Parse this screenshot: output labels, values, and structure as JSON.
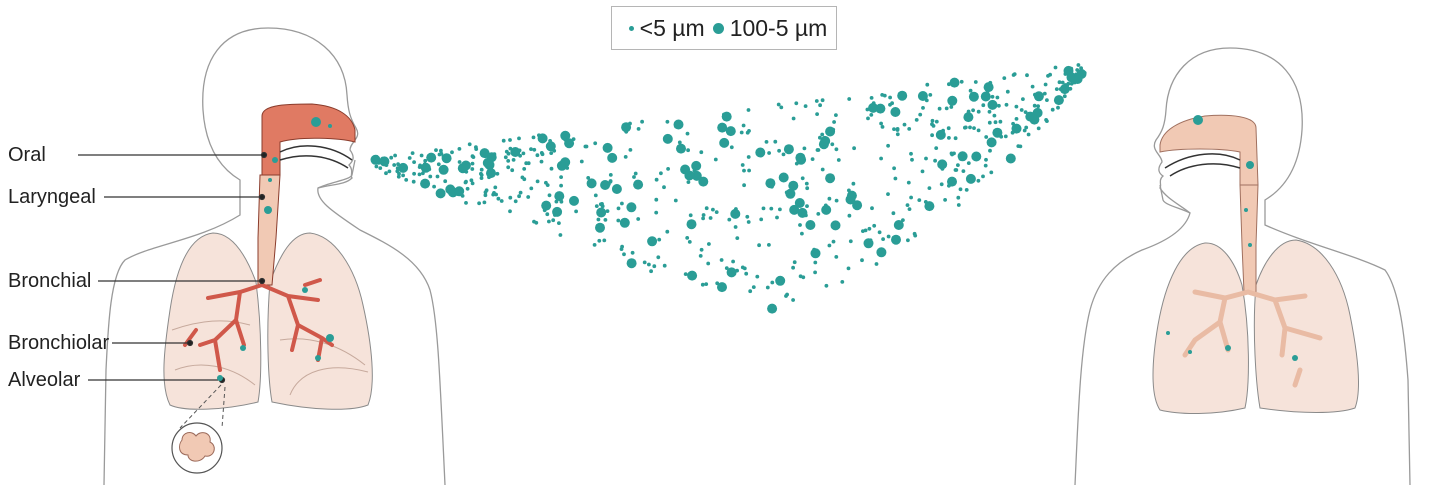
{
  "legend": {
    "small_label": "<5 µm",
    "large_label": "100-5 µm"
  },
  "labels": {
    "oral": "Oral",
    "laryngeal": "Laryngeal",
    "bronchial": "Bronchial",
    "bronchiolar": "Bronchiolar",
    "alveolar": "Alveolar"
  },
  "colors": {
    "droplet": "#2a9d96",
    "airway": "#e07a63",
    "airway_light": "#f1c9b4",
    "lung_fill": "#f6e3da",
    "outline": "#8a8a8a"
  }
}
